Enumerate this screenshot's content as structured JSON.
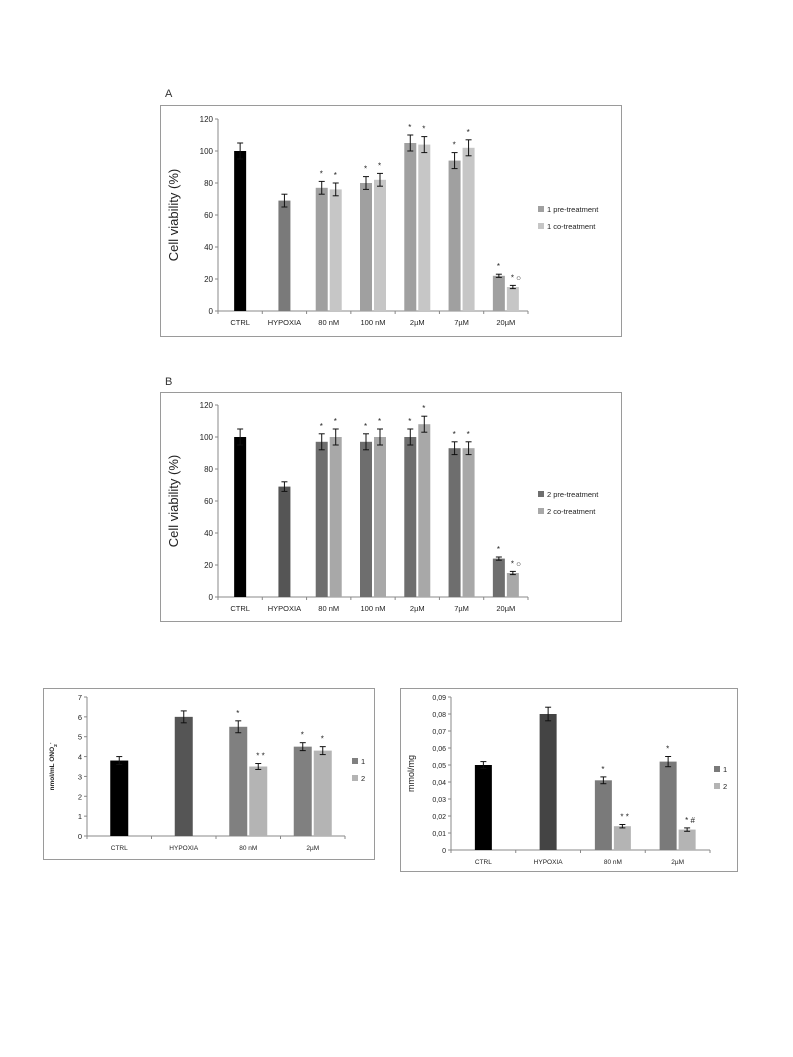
{
  "chart_data": [
    {
      "panel_label": "A",
      "type": "bar",
      "ylabel": "Cell viability  (%)",
      "ylim": [
        0,
        120
      ],
      "yticks": [
        0,
        20,
        40,
        60,
        80,
        100,
        120
      ],
      "categories": [
        "CTRL",
        "HYPOXIA",
        "80 nM",
        "100 nM",
        "2µM",
        "7µM",
        "20µM"
      ],
      "single_bars": [
        {
          "category": "CTRL",
          "value": 100,
          "error": 5,
          "color": "#000000"
        },
        {
          "category": "HYPOXIA",
          "value": 69,
          "error": 4,
          "color": "#7a7a7a"
        }
      ],
      "series": [
        {
          "name": "1 pre-treatment",
          "color": "#a0a0a0",
          "values": [
            null,
            null,
            77,
            80,
            105,
            94,
            22
          ],
          "errors": [
            null,
            null,
            4,
            4,
            5,
            5,
            1
          ],
          "marks": [
            "",
            "",
            "*",
            "*",
            "*",
            "*",
            "*"
          ]
        },
        {
          "name": "1 co-treatment",
          "color": "#c6c6c6",
          "values": [
            null,
            null,
            76,
            82,
            104,
            102,
            15
          ],
          "errors": [
            null,
            null,
            4,
            4,
            5,
            5,
            1
          ],
          "marks": [
            "",
            "",
            "*",
            "*",
            "*",
            "*",
            "* ○"
          ]
        }
      ],
      "legend_position": "right"
    },
    {
      "panel_label": "B",
      "type": "bar",
      "ylabel": "Cell viability  (%)",
      "ylim": [
        0,
        120
      ],
      "yticks": [
        0,
        20,
        40,
        60,
        80,
        100,
        120
      ],
      "categories": [
        "CTRL",
        "HYPOXIA",
        "80 nM",
        "100 nM",
        "2µM",
        "7µM",
        "20µM"
      ],
      "single_bars": [
        {
          "category": "CTRL",
          "value": 100,
          "error": 5,
          "color": "#000000"
        },
        {
          "category": "HYPOXIA",
          "value": 69,
          "error": 3,
          "color": "#555555"
        }
      ],
      "series": [
        {
          "name": "2 pre-treatment",
          "color": "#6e6e6e",
          "values": [
            null,
            null,
            97,
            97,
            100,
            93,
            24
          ],
          "errors": [
            null,
            null,
            5,
            5,
            5,
            4,
            1
          ],
          "marks": [
            "",
            "",
            "*",
            "*",
            "*",
            "*",
            "*"
          ]
        },
        {
          "name": "2 co-treatment",
          "color": "#a8a8a8",
          "values": [
            null,
            null,
            100,
            100,
            108,
            93,
            15
          ],
          "errors": [
            null,
            null,
            5,
            5,
            5,
            4,
            1
          ],
          "marks": [
            "",
            "",
            "*",
            "*",
            "*",
            "*",
            "* ○"
          ]
        }
      ],
      "legend_position": "right"
    },
    {
      "panel_label": "",
      "type": "bar",
      "ylabel": "nmol/mL ONO2-",
      "ylim": [
        0,
        7
      ],
      "yticks": [
        0,
        1,
        2,
        3,
        4,
        5,
        6,
        7
      ],
      "categories": [
        "CTRL",
        "HYPOXIA",
        "80 nM",
        "2µM"
      ],
      "single_bars": [
        {
          "category": "CTRL",
          "value": 3.8,
          "error": 0.2,
          "color": "#000000"
        },
        {
          "category": "HYPOXIA",
          "value": 6.0,
          "error": 0.3,
          "color": "#555555"
        }
      ],
      "series": [
        {
          "name": "1",
          "color": "#808080",
          "values": [
            null,
            null,
            5.5,
            4.5
          ],
          "errors": [
            null,
            null,
            0.3,
            0.2
          ],
          "marks": [
            "",
            "",
            "*",
            "*"
          ]
        },
        {
          "name": "2",
          "color": "#b4b4b4",
          "values": [
            null,
            null,
            3.5,
            4.3
          ],
          "errors": [
            null,
            null,
            0.15,
            0.2
          ],
          "marks": [
            "",
            "",
            "* *",
            "*"
          ]
        }
      ],
      "legend_position": "right"
    },
    {
      "panel_label": "",
      "type": "bar",
      "ylabel": "mmol/mg",
      "ylim": [
        0,
        0.09
      ],
      "yticks": [
        0,
        0.01,
        0.02,
        0.03,
        0.04,
        0.05,
        0.06,
        0.07,
        0.08,
        0.09
      ],
      "ytick_labels": [
        "0",
        "0,01",
        "0,02",
        "0,03",
        "0,04",
        "0,05",
        "0,06",
        "0,07",
        "0,08",
        "0,09"
      ],
      "categories": [
        "CTRL",
        "HYPOXIA",
        "80 nM",
        "2µM"
      ],
      "single_bars": [
        {
          "category": "CTRL",
          "value": 0.05,
          "error": 0.002,
          "color": "#000000"
        },
        {
          "category": "HYPOXIA",
          "value": 0.08,
          "error": 0.004,
          "color": "#444444"
        }
      ],
      "series": [
        {
          "name": "1",
          "color": "#7a7a7a",
          "values": [
            null,
            null,
            0.041,
            0.052
          ],
          "errors": [
            null,
            null,
            0.002,
            0.003
          ],
          "marks": [
            "",
            "",
            "*",
            "*"
          ]
        },
        {
          "name": "2",
          "color": "#b4b4b4",
          "values": [
            null,
            null,
            0.014,
            0.012
          ],
          "errors": [
            null,
            null,
            0.001,
            0.001
          ],
          "marks": [
            "",
            "",
            "* *",
            "*  #"
          ]
        }
      ],
      "legend_position": "right"
    }
  ]
}
